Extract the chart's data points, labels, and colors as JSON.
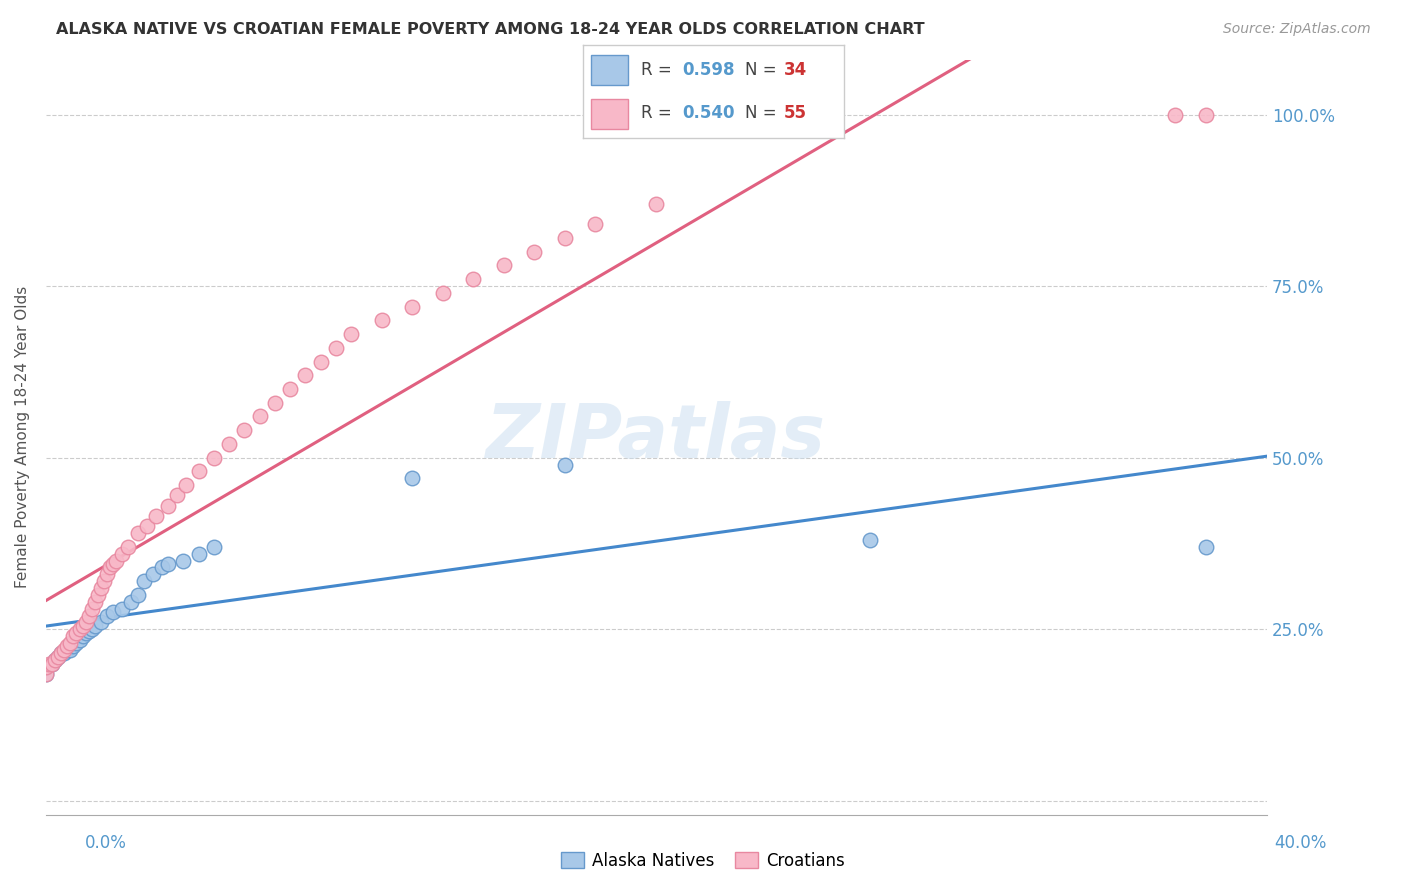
{
  "title": "ALASKA NATIVE VS CROATIAN FEMALE POVERTY AMONG 18-24 YEAR OLDS CORRELATION CHART",
  "source": "Source: ZipAtlas.com",
  "ylabel": "Female Poverty Among 18-24 Year Olds",
  "xlim": [
    0.0,
    0.4
  ],
  "ylim": [
    -0.02,
    1.08
  ],
  "yticks": [
    0.0,
    0.25,
    0.5,
    0.75,
    1.0
  ],
  "ytick_labels": [
    "",
    "25.0%",
    "50.0%",
    "75.0%",
    "100.0%"
  ],
  "blue_scatter_color": "#a8c8e8",
  "blue_edge_color": "#6699cc",
  "pink_scatter_color": "#f8b8c8",
  "pink_edge_color": "#e888a0",
  "blue_line_color": "#4488cc",
  "pink_line_color": "#e06080",
  "yaxis_label_color": "#5599cc",
  "watermark": "ZIPatlas",
  "alaska_natives_x": [
    0.0,
    0.0,
    0.002,
    0.003,
    0.004,
    0.005,
    0.006,
    0.007,
    0.008,
    0.009,
    0.01,
    0.011,
    0.012,
    0.013,
    0.014,
    0.015,
    0.016,
    0.018,
    0.02,
    0.022,
    0.025,
    0.028,
    0.03,
    0.032,
    0.035,
    0.038,
    0.04,
    0.045,
    0.05,
    0.055,
    0.12,
    0.17,
    0.27,
    0.38
  ],
  "alaska_natives_y": [
    0.185,
    0.195,
    0.2,
    0.205,
    0.21,
    0.215,
    0.215,
    0.22,
    0.22,
    0.225,
    0.23,
    0.235,
    0.24,
    0.245,
    0.248,
    0.25,
    0.255,
    0.26,
    0.27,
    0.275,
    0.28,
    0.29,
    0.3,
    0.32,
    0.33,
    0.34,
    0.345,
    0.35,
    0.36,
    0.37,
    0.47,
    0.49,
    0.38,
    0.37
  ],
  "croatians_x": [
    0.0,
    0.0,
    0.001,
    0.002,
    0.003,
    0.004,
    0.005,
    0.006,
    0.007,
    0.008,
    0.009,
    0.01,
    0.011,
    0.012,
    0.013,
    0.014,
    0.015,
    0.016,
    0.017,
    0.018,
    0.019,
    0.02,
    0.021,
    0.022,
    0.023,
    0.025,
    0.027,
    0.03,
    0.033,
    0.036,
    0.04,
    0.043,
    0.046,
    0.05,
    0.055,
    0.06,
    0.065,
    0.07,
    0.075,
    0.08,
    0.085,
    0.09,
    0.095,
    0.1,
    0.11,
    0.12,
    0.13,
    0.14,
    0.15,
    0.16,
    0.17,
    0.18,
    0.2,
    0.37,
    0.38
  ],
  "croatians_y": [
    0.185,
    0.195,
    0.2,
    0.2,
    0.205,
    0.21,
    0.215,
    0.22,
    0.225,
    0.23,
    0.24,
    0.245,
    0.25,
    0.255,
    0.26,
    0.27,
    0.28,
    0.29,
    0.3,
    0.31,
    0.32,
    0.33,
    0.34,
    0.345,
    0.35,
    0.36,
    0.37,
    0.39,
    0.4,
    0.415,
    0.43,
    0.445,
    0.46,
    0.48,
    0.5,
    0.52,
    0.54,
    0.56,
    0.58,
    0.6,
    0.62,
    0.64,
    0.66,
    0.68,
    0.7,
    0.72,
    0.74,
    0.76,
    0.78,
    0.8,
    0.82,
    0.84,
    0.87,
    1.0,
    1.0
  ]
}
